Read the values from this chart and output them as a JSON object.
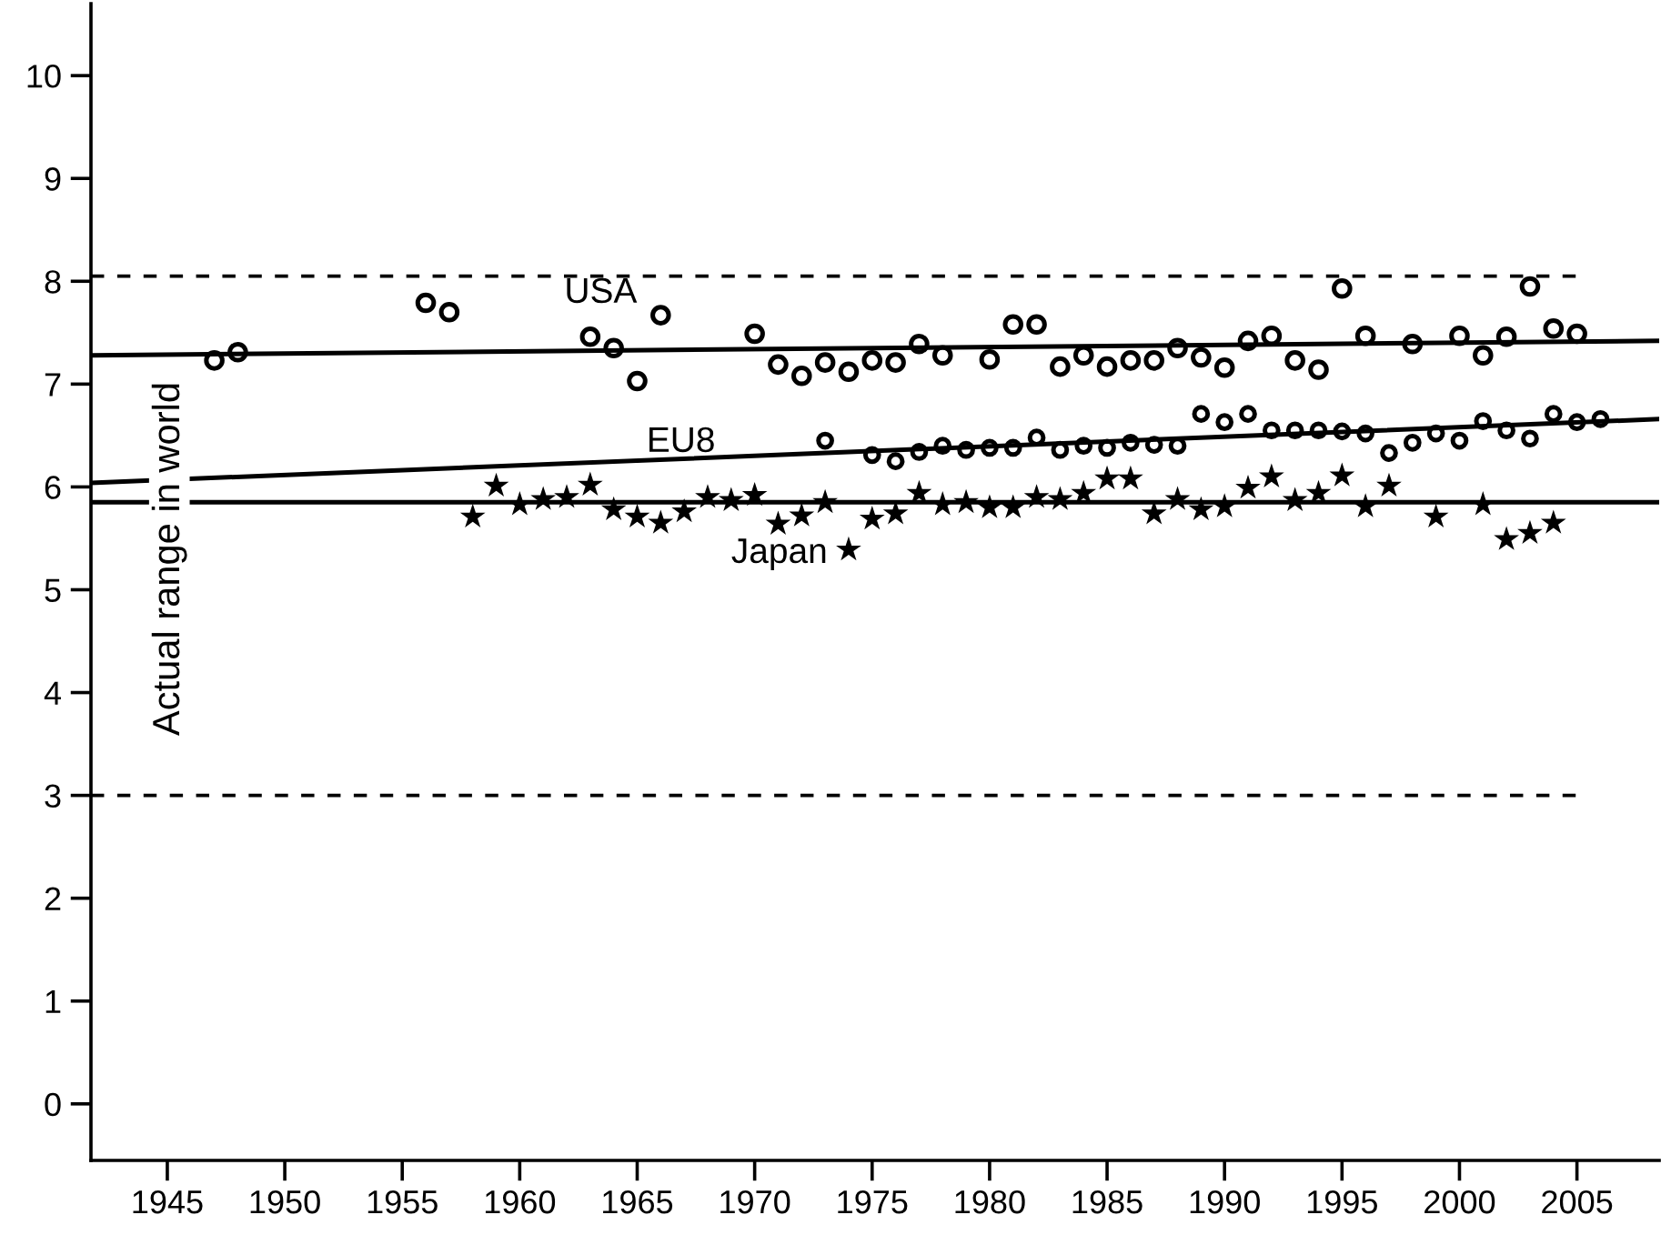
{
  "chart_data": {
    "type": "scatter",
    "xlim": [
      1941.75,
      2008.5
    ],
    "ylim": [
      -0.55,
      10.7
    ],
    "xticks": [
      1945,
      1950,
      1955,
      1960,
      1965,
      1970,
      1975,
      1980,
      1985,
      1990,
      1995,
      2000,
      2005
    ],
    "yticks": [
      0,
      1,
      2,
      3,
      4,
      5,
      6,
      7,
      8,
      9,
      10
    ],
    "grid": false,
    "legend": false,
    "series": [
      {
        "name": "USA",
        "color": "#000000",
        "marker": "circle",
        "x": [
          1947,
          1948,
          1956,
          1957,
          1963,
          1964,
          1965,
          1966,
          1970,
          1971,
          1972,
          1973,
          1974,
          1975,
          1976,
          1977,
          1978,
          1980,
          1981,
          1982,
          1983,
          1984,
          1985,
          1986,
          1987,
          1988,
          1989,
          1990,
          1991,
          1992,
          1993,
          1994,
          1995,
          1996,
          1998,
          2000,
          2001,
          2002,
          2003,
          2004,
          2005
        ],
        "values": [
          7.23,
          7.31,
          7.79,
          7.7,
          7.46,
          7.35,
          7.03,
          7.67,
          7.49,
          7.19,
          7.08,
          7.21,
          7.12,
          7.23,
          7.21,
          7.39,
          7.28,
          7.24,
          7.58,
          7.58,
          7.17,
          7.28,
          7.17,
          7.23,
          7.23,
          7.35,
          7.26,
          7.16,
          7.42,
          7.47,
          7.23,
          7.14,
          7.93,
          7.47,
          7.39,
          7.47,
          7.28,
          7.46,
          7.95,
          7.54,
          7.49
        ]
      },
      {
        "color": "#000000",
        "marker": "circle",
        "x": [
          1973,
          1975,
          1976,
          1977,
          1978,
          1979,
          1980,
          1981,
          1982,
          1983,
          1984,
          1985,
          1986,
          1987,
          1988,
          1989,
          1990,
          1991,
          1992,
          1993,
          1994,
          1995,
          1996,
          1997,
          1998,
          1999,
          2000,
          2001,
          2002,
          2003,
          2004,
          2005,
          2006
        ],
        "values": [
          6.45,
          6.31,
          6.25,
          6.34,
          6.4,
          6.36,
          6.38,
          6.38,
          6.48,
          6.36,
          6.4,
          6.38,
          6.43,
          6.41,
          6.4,
          6.71,
          6.63,
          6.71,
          6.55,
          6.55,
          6.55,
          6.54,
          6.52,
          6.33,
          6.43,
          6.52,
          6.45,
          6.64,
          6.55,
          6.47,
          6.71,
          6.63,
          6.66
        ]
      },
      {
        "name": "Japan",
        "color": "#000000",
        "marker": "star",
        "x": [
          1958,
          1959,
          1960,
          1961,
          1962,
          1963,
          1964,
          1965,
          1966,
          1967,
          1968,
          1969,
          1970,
          1971,
          1972,
          1973,
          1974,
          1975,
          1976,
          1977,
          1978,
          1979,
          1980,
          1981,
          1982,
          1983,
          1984,
          1985,
          1986,
          1987,
          1988,
          1989,
          1990,
          1991,
          1992,
          1993,
          1994,
          1995,
          1996,
          1997,
          1999,
          2001,
          2002,
          2003,
          2004
        ],
        "values": [
          5.71,
          6.01,
          5.83,
          5.88,
          5.9,
          6.02,
          5.78,
          5.71,
          5.65,
          5.76,
          5.9,
          5.87,
          5.92,
          5.64,
          5.72,
          5.85,
          5.39,
          5.69,
          5.74,
          5.94,
          5.83,
          5.85,
          5.8,
          5.8,
          5.9,
          5.88,
          5.94,
          6.08,
          6.08,
          5.74,
          5.88,
          5.78,
          5.81,
          5.99,
          6.1,
          5.87,
          5.94,
          6.11,
          5.81,
          6.01,
          5.71,
          5.83,
          5.49,
          5.55,
          5.65
        ]
      },
      {
        "type": "line",
        "color": "#000000",
        "x": [
          1941.75,
          2008.5
        ],
        "values": [
          7.28,
          7.42
        ]
      },
      {
        "type": "line",
        "name": "EU8",
        "color": "#000000",
        "x": [
          1941.75,
          2008.5
        ],
        "values": [
          6.04,
          6.66
        ]
      },
      {
        "type": "line",
        "color": "#000000",
        "x": [
          1941.75,
          2008.5
        ],
        "values": [
          5.85,
          5.85
        ]
      }
    ],
    "ref_lines": [
      {
        "axis": "y",
        "value": 8.05,
        "line_style": "dashed",
        "color": "#000000"
      },
      {
        "axis": "y",
        "value": 3.0,
        "line_style": "dashed",
        "color": "#000000"
      }
    ],
    "annotations": [
      "Actual range in world"
    ]
  }
}
